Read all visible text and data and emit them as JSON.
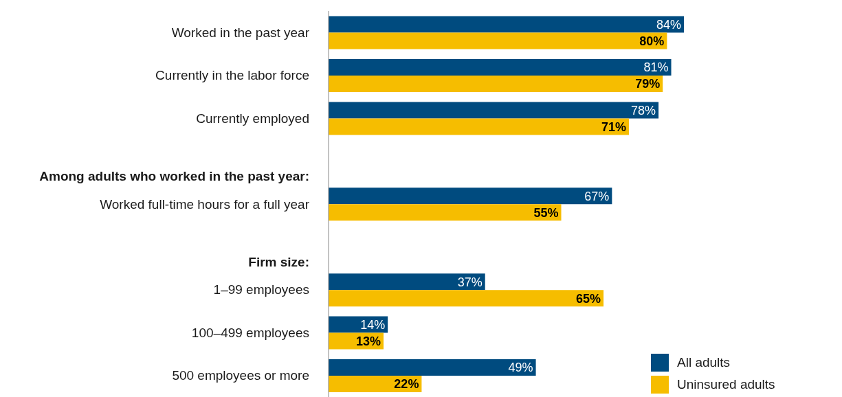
{
  "chart_data": {
    "type": "bar",
    "orientation": "horizontal",
    "categories": [
      "Worked in the past year",
      "Currently in the labor force",
      "Currently employed",
      null,
      "Worked full-time hours for a full year",
      null,
      "1–99 employees",
      "100–499 employees",
      "500 employees or more"
    ],
    "series": [
      {
        "name": "All adults",
        "color": "#004b7f",
        "values": [
          84,
          81,
          78,
          null,
          67,
          null,
          37,
          14,
          49
        ],
        "value_labels": [
          "84%",
          "81%",
          "78%",
          null,
          "67%",
          null,
          "37%",
          "14%",
          "49%"
        ]
      },
      {
        "name": "Uninsured adults",
        "color": "#f6bd00",
        "values": [
          80,
          79,
          71,
          null,
          55,
          null,
          65,
          13,
          22
        ],
        "value_labels": [
          "80%",
          "79%",
          "71%",
          null,
          "55%",
          null,
          "65%",
          "13%",
          "22%"
        ]
      }
    ],
    "annotations": [
      "Among adults who worked in the past year:",
      "Firm size:"
    ],
    "legend": "bottom right",
    "grid": false
  }
}
